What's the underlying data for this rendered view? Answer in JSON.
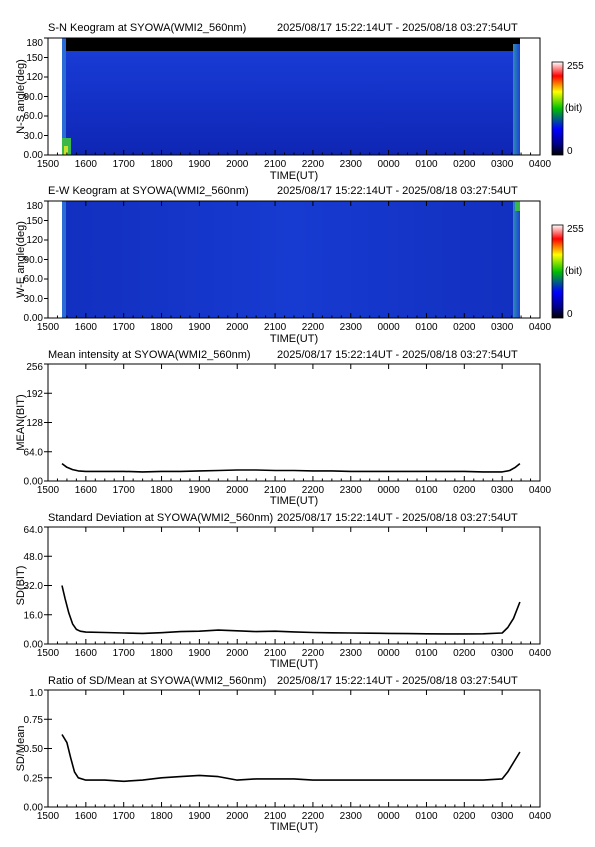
{
  "page": {
    "time_range": "2025/08/17 15:22:14UT - 2025/08/18 03:27:54UT"
  },
  "x_axis": {
    "label": "TIME(UT)",
    "tick_labels": [
      "1500",
      "1600",
      "1700",
      "1800",
      "1900",
      "2000",
      "2100",
      "2200",
      "2300",
      "0000",
      "0100",
      "0200",
      "0300",
      "0400"
    ]
  },
  "keograms": [
    {
      "title": "S-N Keogram at SYOWA(WMI2_560nm)",
      "ylabel": "N-S angle(deg)",
      "ytick_labels": [
        "0.00",
        "30.0",
        "60.0",
        "90.0",
        "120",
        "150",
        "180"
      ],
      "ylim": [
        0,
        180
      ],
      "colorbar": {
        "max": "255",
        "unit": "(bit)",
        "min": "0"
      }
    },
    {
      "title": "E-W Keogram at SYOWA(WMI2_560nm)",
      "ylabel": "W-E angle(deg)",
      "ytick_labels": [
        "0.00",
        "30.0",
        "60.0",
        "90.0",
        "120",
        "150",
        "180"
      ],
      "ylim": [
        0,
        180
      ],
      "colorbar": {
        "max": "255",
        "unit": "(bit)",
        "min": "0"
      }
    }
  ],
  "chart_data": [
    {
      "type": "heatmap",
      "title": "S-N Keogram at SYOWA(WMI2_560nm)",
      "xlabel": "TIME(UT)",
      "ylabel": "N-S angle(deg)",
      "xlim": [
        15.0,
        28.0
      ],
      "ylim": [
        0,
        180
      ],
      "data_start": 15.37,
      "data_end": 27.47,
      "color_range": [
        0,
        255
      ],
      "colormap": [
        "#000000",
        "#00008b",
        "#0000ff",
        "#00c000",
        "#ffff00",
        "#ff0000",
        "#ffffff"
      ]
    },
    {
      "type": "heatmap",
      "title": "E-W Keogram at SYOWA(WMI2_560nm)",
      "xlabel": "TIME(UT)",
      "ylabel": "W-E angle(deg)",
      "xlim": [
        15.0,
        28.0
      ],
      "ylim": [
        0,
        180
      ],
      "data_start": 15.37,
      "data_end": 27.47,
      "color_range": [
        0,
        255
      ],
      "colormap": [
        "#000000",
        "#00008b",
        "#0000ff",
        "#00c000",
        "#ffff00",
        "#ff0000",
        "#ffffff"
      ]
    },
    {
      "type": "line",
      "title": "Mean intensity at SYOWA(WMI2_560nm)",
      "xlabel": "TIME(UT)",
      "ylabel": "MEAN(BIT)",
      "xlim": [
        15.0,
        28.0
      ],
      "ylim": [
        0,
        256
      ],
      "ytick_labels": [
        "0.00",
        "64.0",
        "128",
        "192",
        "256"
      ],
      "x": [
        15.37,
        15.5,
        15.65,
        15.8,
        16.0,
        16.5,
        17.0,
        17.5,
        18.0,
        18.5,
        19.0,
        19.5,
        20.0,
        20.5,
        21.0,
        21.5,
        22.0,
        22.5,
        23.0,
        23.5,
        24.0,
        24.5,
        25.0,
        25.5,
        26.0,
        26.5,
        27.0,
        27.2,
        27.35,
        27.47
      ],
      "y": [
        38,
        30,
        25,
        22,
        21,
        21,
        21,
        20,
        21,
        21,
        22,
        23,
        24,
        24,
        23,
        23,
        22,
        22,
        21,
        21,
        21,
        21,
        21,
        21,
        21,
        20,
        20,
        23,
        30,
        38
      ]
    },
    {
      "type": "line",
      "title": "Standard Deviation at SYOWA(WMI2_560nm)",
      "xlabel": "TIME(UT)",
      "ylabel": "SD(BIT)",
      "xlim": [
        15.0,
        28.0
      ],
      "ylim": [
        0,
        64
      ],
      "ytick_labels": [
        "0.00",
        "16.0",
        "32.0",
        "48.0",
        "64.0"
      ],
      "x": [
        15.37,
        15.45,
        15.55,
        15.65,
        15.75,
        15.85,
        16.0,
        16.5,
        17.0,
        17.5,
        18.0,
        18.5,
        19.0,
        19.5,
        20.0,
        20.5,
        21.0,
        21.5,
        22.0,
        22.5,
        23.0,
        23.5,
        24.0,
        24.5,
        25.0,
        25.5,
        26.0,
        26.5,
        27.0,
        27.15,
        27.3,
        27.47
      ],
      "y": [
        32,
        25,
        17,
        11,
        8,
        7,
        6.5,
        6.3,
        6.0,
        5.8,
        6.2,
        6.8,
        7.0,
        7.6,
        7.2,
        6.8,
        7.0,
        6.6,
        6.3,
        6.1,
        6.0,
        5.9,
        5.8,
        5.7,
        5.6,
        5.5,
        5.5,
        5.6,
        6.0,
        9,
        14,
        23
      ]
    },
    {
      "type": "line",
      "title": "Ratio of SD/Mean at SYOWA(WMI2_560nm)",
      "xlabel": "TIME(UT)",
      "ylabel": "SD/Mean",
      "xlim": [
        15.0,
        28.0
      ],
      "ylim": [
        0,
        1.0
      ],
      "ytick_labels": [
        "0.00",
        "0.25",
        "0.50",
        "0.75",
        "1.0"
      ],
      "x": [
        15.37,
        15.5,
        15.6,
        15.7,
        15.8,
        16.0,
        16.5,
        17.0,
        17.5,
        18.0,
        18.5,
        19.0,
        19.5,
        20.0,
        20.5,
        21.0,
        21.5,
        22.0,
        22.5,
        23.0,
        23.5,
        24.0,
        24.5,
        25.0,
        25.5,
        26.0,
        26.5,
        27.0,
        27.15,
        27.3,
        27.47
      ],
      "y": [
        0.62,
        0.55,
        0.42,
        0.3,
        0.25,
        0.23,
        0.23,
        0.22,
        0.23,
        0.25,
        0.26,
        0.27,
        0.26,
        0.23,
        0.24,
        0.24,
        0.24,
        0.23,
        0.23,
        0.23,
        0.23,
        0.23,
        0.23,
        0.23,
        0.23,
        0.23,
        0.23,
        0.24,
        0.3,
        0.38,
        0.47
      ]
    }
  ]
}
